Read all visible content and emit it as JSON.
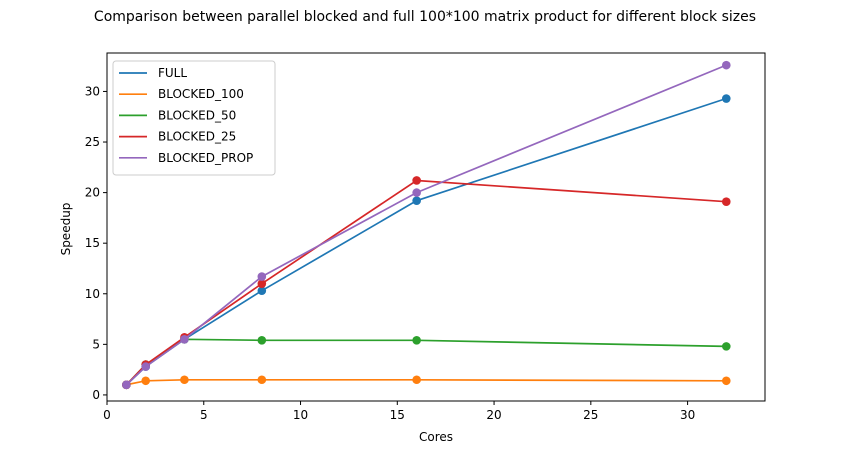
{
  "chart_data": {
    "type": "line",
    "title": "Comparison between parallel blocked and full 100*100 matrix product for different block sizes",
    "xlabel": "Cores",
    "ylabel": "Speedup",
    "xlim": [
      0,
      34
    ],
    "ylim": [
      -0.6,
      33.8
    ],
    "xticks": [
      0,
      5,
      10,
      15,
      20,
      25,
      30
    ],
    "yticks": [
      0,
      5,
      10,
      15,
      20,
      25,
      30
    ],
    "grid": false,
    "legend_position": "top-left",
    "markers": true,
    "series": [
      {
        "name": "FULL",
        "color": "#1f77b4",
        "x": [
          1,
          2,
          4,
          8,
          16,
          32
        ],
        "y": [
          1.0,
          2.8,
          5.5,
          10.3,
          19.2,
          29.3
        ]
      },
      {
        "name": "BLOCKED_100",
        "color": "#ff7f0e",
        "x": [
          1,
          2,
          4,
          8,
          16,
          32
        ],
        "y": [
          1.0,
          1.4,
          1.5,
          1.5,
          1.5,
          1.4
        ]
      },
      {
        "name": "BLOCKED_50",
        "color": "#2ca02c",
        "x": [
          1,
          2,
          4,
          8,
          16,
          32
        ],
        "y": [
          1.0,
          3.0,
          5.5,
          5.4,
          5.4,
          4.8
        ]
      },
      {
        "name": "BLOCKED_25",
        "color": "#d62728",
        "x": [
          1,
          2,
          4,
          8,
          16,
          32
        ],
        "y": [
          1.0,
          3.0,
          5.7,
          11.0,
          21.2,
          19.1
        ]
      },
      {
        "name": "BLOCKED_PROP",
        "color": "#9467bd",
        "x": [
          1,
          2,
          4,
          8,
          16,
          32
        ],
        "y": [
          1.0,
          2.8,
          5.5,
          11.7,
          20.0,
          32.6
        ]
      }
    ]
  }
}
